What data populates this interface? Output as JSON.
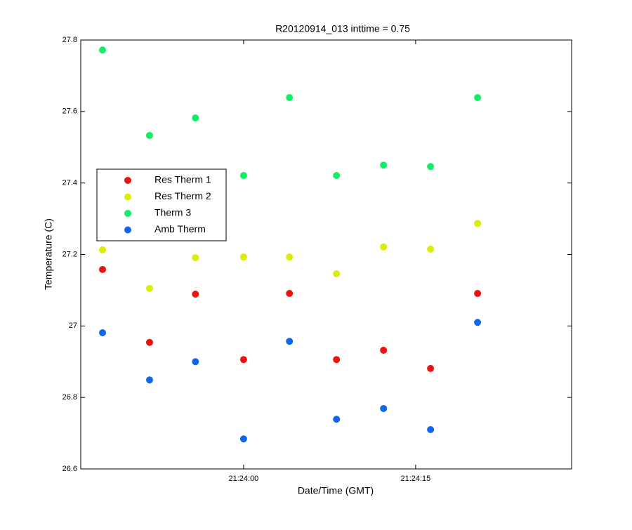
{
  "chart_data": {
    "type": "scatter",
    "title": "R20120914_013 inttime = 0.75",
    "x_label": "Date/Time (GMT)",
    "y_label": "Temperature (C)",
    "x": [
      77027.7,
      77031.8,
      77035.8,
      77040.0,
      77044.0,
      77048.1,
      77052.2,
      77056.3,
      77060.4
    ],
    "series": [
      {
        "name": "Res Therm 1",
        "color": "#ee1111",
        "values": [
          27.158,
          26.954,
          27.089,
          26.906,
          27.091,
          26.906,
          26.932,
          26.881,
          27.091
        ]
      },
      {
        "name": "Res Therm 2",
        "color": "#d9ee00",
        "values": [
          27.213,
          27.105,
          27.191,
          27.193,
          27.193,
          27.146,
          27.221,
          27.215,
          27.287
        ]
      },
      {
        "name": "Therm 3",
        "color": "#11ee66",
        "values": [
          27.772,
          27.533,
          27.582,
          27.421,
          27.639,
          27.421,
          27.45,
          27.446,
          27.639
        ]
      },
      {
        "name": "Amb Therm",
        "color": "#1166ee",
        "values": [
          26.981,
          26.849,
          26.9,
          26.684,
          26.957,
          26.739,
          26.769,
          26.71,
          27.01
        ]
      }
    ],
    "xlim": [
      77025.8,
      77068.6
    ],
    "xticks": [
      {
        "value": 77040,
        "label": "21:24:00"
      },
      {
        "value": 77055,
        "label": "21:24:15"
      }
    ],
    "ylim": [
      26.6,
      27.8
    ],
    "yticks": [
      26.6,
      26.8,
      27,
      27.2,
      27.4,
      27.6,
      27.8
    ],
    "legend": "left"
  }
}
